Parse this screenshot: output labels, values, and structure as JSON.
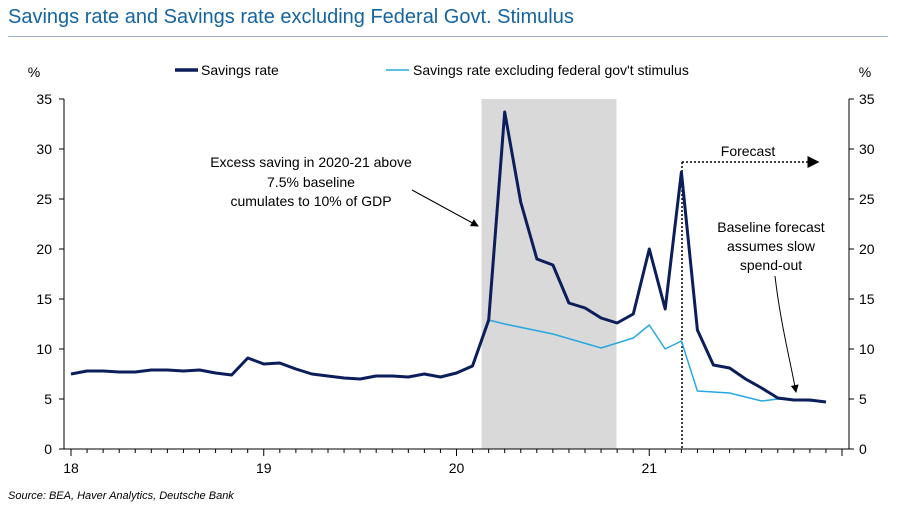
{
  "title": "Savings rate and Savings rate excluding Federal Govt. Stimulus",
  "source": "Source: BEA, Haver Analytics, Deutsche Bank",
  "colors": {
    "title": "#1464a0",
    "series_dark": "#0b1e5b",
    "series_light": "#27a8e0",
    "shade": "#d9d9d9"
  },
  "chart_data": {
    "type": "line",
    "y_unit_left": "%",
    "y_unit_right": "%",
    "ylim": [
      0,
      35
    ],
    "y_ticks": [
      0,
      5,
      10,
      15,
      20,
      25,
      30,
      35
    ],
    "x_range": [
      2018.0,
      2022.0
    ],
    "x_ticks": [
      {
        "value": 2018,
        "label": "18"
      },
      {
        "value": 2019,
        "label": "19"
      },
      {
        "value": 2020,
        "label": "20"
      },
      {
        "value": 2021,
        "label": "21"
      }
    ],
    "grid": false,
    "legend_position": "top",
    "shaded_period": {
      "from": 2020.13,
      "to": 2020.83
    },
    "forecast_start": 2021.17,
    "series": [
      {
        "name": "Savings rate",
        "x": [
          2018.0,
          2018.083,
          2018.167,
          2018.25,
          2018.333,
          2018.417,
          2018.5,
          2018.583,
          2018.667,
          2018.75,
          2018.833,
          2018.917,
          2019.0,
          2019.083,
          2019.167,
          2019.25,
          2019.333,
          2019.417,
          2019.5,
          2019.583,
          2019.667,
          2019.75,
          2019.833,
          2019.917,
          2020.0,
          2020.083,
          2020.167,
          2020.25,
          2020.333,
          2020.417,
          2020.5,
          2020.583,
          2020.667,
          2020.75,
          2020.833,
          2020.917,
          2021.0,
          2021.083,
          2021.167,
          2021.25,
          2021.333,
          2021.417,
          2021.5,
          2021.583,
          2021.667,
          2021.75,
          2021.833,
          2021.917
        ],
        "values": [
          7.5,
          7.8,
          7.8,
          7.7,
          7.7,
          7.9,
          7.9,
          7.8,
          7.9,
          7.6,
          7.4,
          9.1,
          8.5,
          8.6,
          8.0,
          7.5,
          7.3,
          7.1,
          7.0,
          7.3,
          7.3,
          7.2,
          7.5,
          7.2,
          7.6,
          8.3,
          12.9,
          33.7,
          24.7,
          19.0,
          18.4,
          14.6,
          14.1,
          13.1,
          12.6,
          13.5,
          20.0,
          14.0,
          27.7,
          11.9,
          8.4,
          8.1,
          7.0,
          6.1,
          5.1,
          4.9,
          4.9,
          4.7
        ]
      },
      {
        "name": "Savings rate excluding federal gov't stimulus",
        "x": [
          2018.0,
          2018.083,
          2018.167,
          2018.25,
          2018.333,
          2018.417,
          2018.5,
          2018.583,
          2018.667,
          2018.75,
          2018.833,
          2018.917,
          2019.0,
          2019.083,
          2019.167,
          2019.25,
          2019.333,
          2019.417,
          2019.5,
          2019.583,
          2019.667,
          2019.75,
          2019.833,
          2019.917,
          2020.0,
          2020.083,
          2020.167,
          2020.25,
          2020.5,
          2020.75,
          2020.917,
          2021.0,
          2021.083,
          2021.167,
          2021.25,
          2021.417,
          2021.583,
          2021.667,
          2021.75,
          2021.917
        ],
        "values": [
          7.5,
          7.8,
          7.8,
          7.7,
          7.7,
          7.9,
          7.9,
          7.8,
          7.9,
          7.6,
          7.4,
          9.1,
          8.5,
          8.6,
          8.0,
          7.5,
          7.3,
          7.1,
          7.0,
          7.3,
          7.3,
          7.2,
          7.5,
          7.2,
          7.6,
          8.3,
          12.9,
          12.5,
          11.5,
          10.1,
          11.1,
          12.4,
          10.0,
          10.8,
          5.8,
          5.6,
          4.8,
          5.0,
          4.9,
          4.7
        ]
      }
    ],
    "annotations": [
      {
        "id": "excess",
        "lines": [
          "Excess saving in 2020-21 above",
          "7.5% baseline",
          "cumulates to 10% of GDP"
        ]
      },
      {
        "id": "forecast",
        "lines": [
          "Forecast"
        ]
      },
      {
        "id": "baseline",
        "lines": [
          "Baseline forecast",
          "assumes slow",
          "spend-out"
        ]
      }
    ]
  }
}
